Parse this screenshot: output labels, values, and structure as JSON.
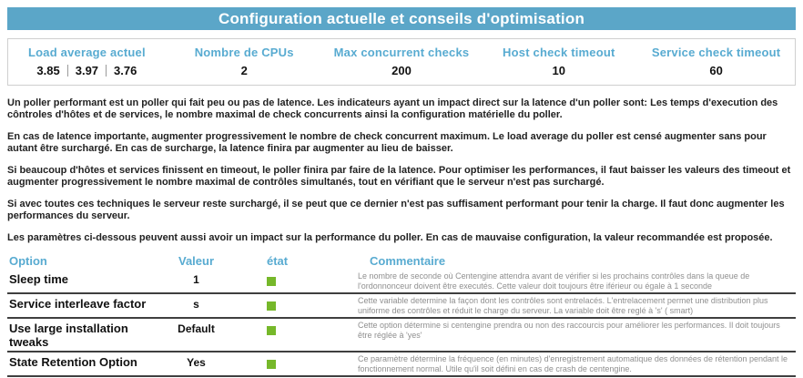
{
  "title": "Configuration actuelle et conseils d'optimisation",
  "colors": {
    "accent_bar": "#5ba6c8",
    "label_blue": "#58abd1",
    "status_ok_green": "#76b82a"
  },
  "stats": [
    {
      "label": "Load average actuel",
      "parts": [
        "3.85",
        "3.97",
        "3.76"
      ]
    },
    {
      "label": "Nombre de CPUs",
      "value": "2"
    },
    {
      "label": "Max concurrent checks",
      "value": "200"
    },
    {
      "label": "Host check timeout",
      "value": "10"
    },
    {
      "label": "Service check timeout",
      "value": "60"
    }
  ],
  "paragraphs": [
    "Un poller performant est un poller qui fait peu ou pas de latence. Les indicateurs ayant un impact direct sur la latence d'un poller sont: Les temps d'execution des côntroles d'hôtes et de services, le nombre maximal de check concurrents ainsi la configuration matérielle du poller.",
    "En cas de latence importante, augmenter progressivement le nombre de check concurrent maximum. Le load average du poller est censé augmenter sans pour autant être surchargé. En cas de surcharge, la latence finira par augmenter au lieu de baisser.",
    "Si beaucoup d'hôtes et services finissent en timeout, le poller finira par faire de la latence. Pour optimiser les performances, il faut baisser les valeurs des timeout et augmenter progressivement le nombre maximal de contrôles simultanés, tout en vérifiant que le serveur n'est pas surchargé.",
    "Si avec toutes ces techniques le serveur reste surchargé, il se peut que ce dernier n'est pas suffisament performant pour tenir la charge. Il faut donc augmenter les performances du serveur.",
    "Les paramètres ci-dessous peuvent aussi avoir un impact sur la performance du poller. En cas de mauvaise configuration, la valeur recommandée est proposée."
  ],
  "table": {
    "headers": {
      "option": "Option",
      "valeur": "Valeur",
      "etat": "état",
      "commentaire": "Commentaire"
    },
    "rows": [
      {
        "option": "Sleep time",
        "valeur": "1",
        "etat": "ok",
        "commentaire": "Le nombre de seconde où Centengine attendra avant de vérifier si les prochains contrôles dans la queue de l'ordonnonceur doivent être executés. Cette valeur doit toujours être iférieur ou égale à 1 seconde"
      },
      {
        "option": "Service interleave factor",
        "valeur": "s",
        "etat": "ok",
        "commentaire": "Cette variable determine la façon dont les contrôles sont entrelacés. L'entrelacement permet une distribution plus uniforme des contrôles et réduit le charge du serveur. La variable doit être reglé à 's' ( smart)"
      },
      {
        "option": "Use large installation tweaks",
        "valeur": "Default",
        "etat": "ok",
        "commentaire": "Cette option détermine si centengine prendra ou non des raccourcis pour améliorer les performances. Il doit toujours être réglée à 'yes'"
      },
      {
        "option": "State Retention Option",
        "valeur": "Yes",
        "etat": "ok",
        "commentaire": "Ce paramètre détermine la fréquence (en minutes) d'enregistrement automatique des données de rétention pendant le fonctionnement normal. Utile qu'il soit défini en cas de crash de centengine."
      }
    ]
  }
}
